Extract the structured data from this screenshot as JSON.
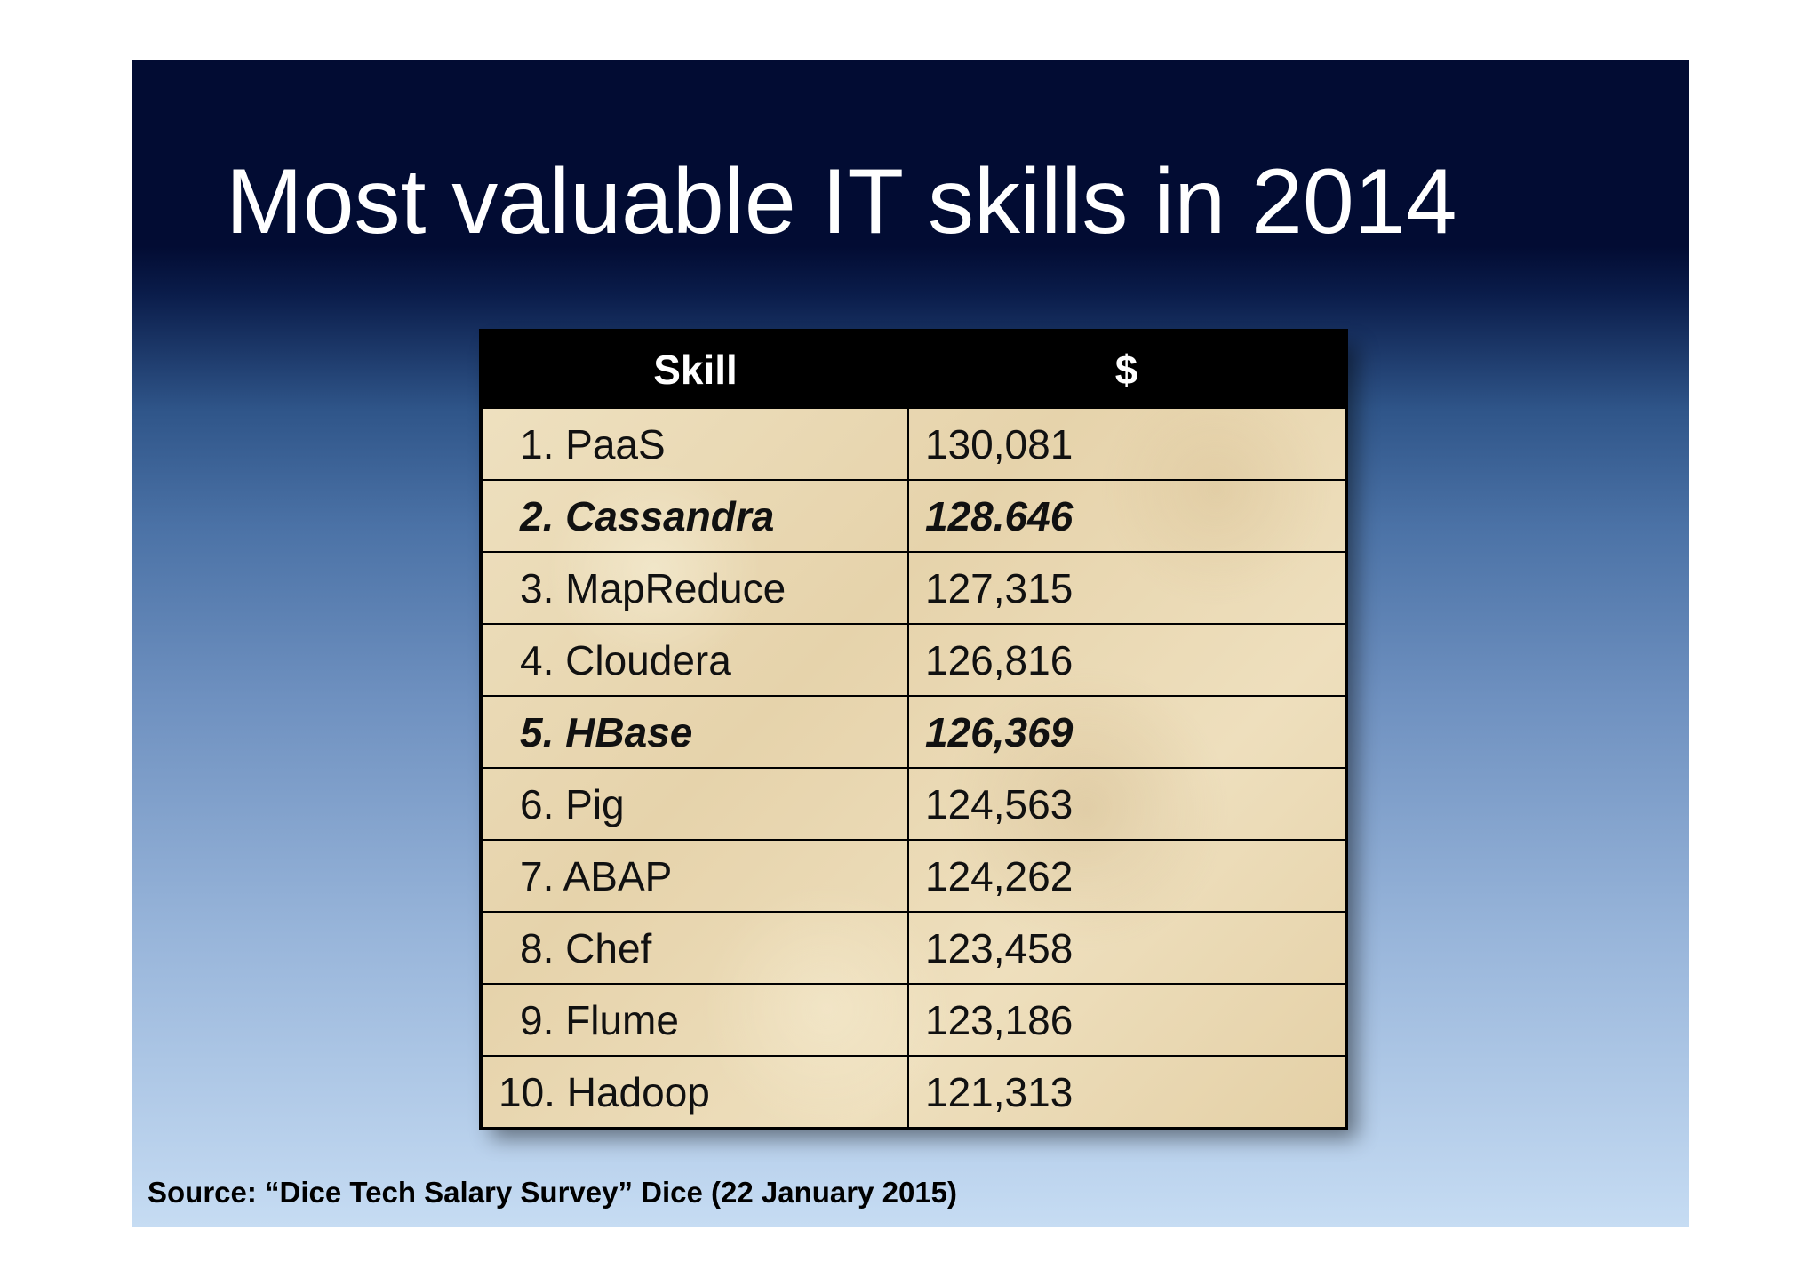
{
  "slide": {
    "title": "Most valuable IT skills in 2014",
    "source": "Source: “Dice Tech Salary Survey” Dice (22 January 2015)"
  },
  "table": {
    "headers": [
      "Skill",
      "$"
    ],
    "rows": [
      {
        "skill": "1. PaaS",
        "value": "130,081",
        "emphasis": false
      },
      {
        "skill": "2. Cassandra",
        "value": "128.646",
        "emphasis": true
      },
      {
        "skill": "3. MapReduce",
        "value": "127,315",
        "emphasis": false
      },
      {
        "skill": "4. Cloudera",
        "value": "126,816",
        "emphasis": false
      },
      {
        "skill": "5. HBase",
        "value": "126,369",
        "emphasis": true
      },
      {
        "skill": "6. Pig",
        "value": "124,563",
        "emphasis": false
      },
      {
        "skill": "7. ABAP",
        "value": "124,262",
        "emphasis": false
      },
      {
        "skill": "8. Chef",
        "value": "123,458",
        "emphasis": false
      },
      {
        "skill": "9. Flume",
        "value": "123,186",
        "emphasis": false
      },
      {
        "skill": "10. Hadoop",
        "value": "121,313",
        "emphasis": false
      }
    ]
  },
  "colors": {
    "header_background": "#000000",
    "header_text": "#ffffff",
    "slide_top": "#020c33",
    "slide_bottom": "#c6dcf3",
    "parchment": "#ecdcb8"
  }
}
